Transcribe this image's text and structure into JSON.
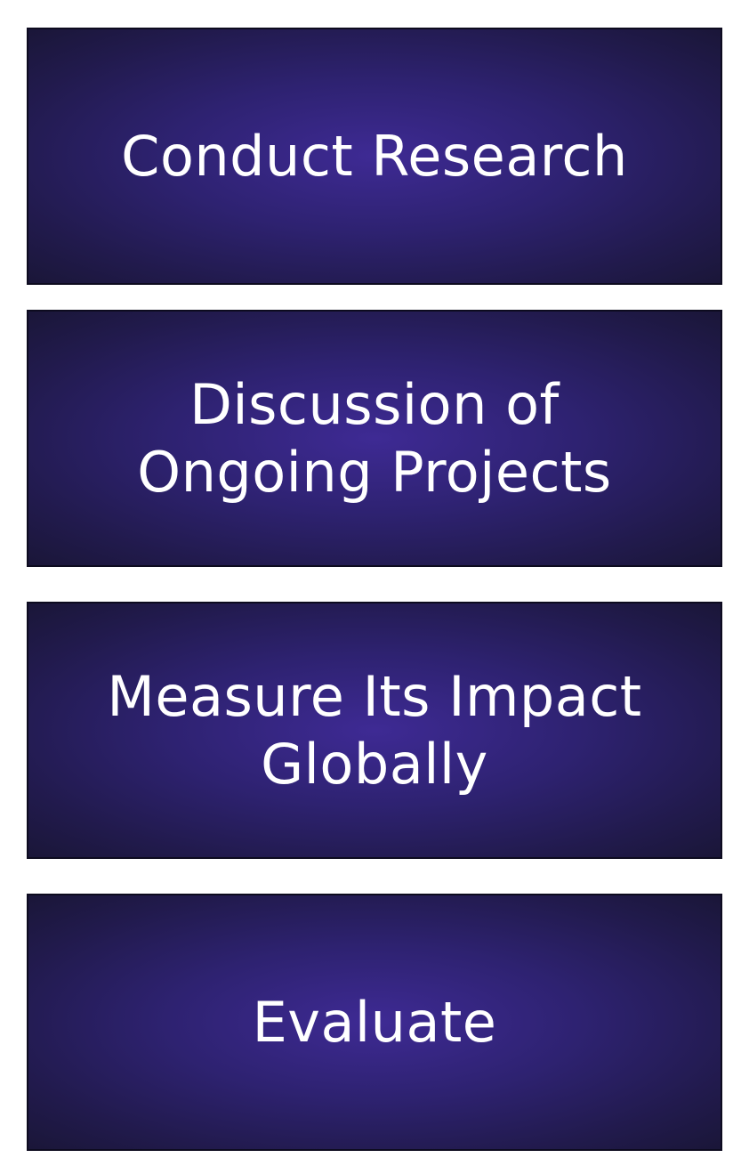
{
  "steps": [
    {
      "label": "Conduct Research"
    },
    {
      "label": "Discussion of\nOngoing Projects"
    },
    {
      "label": "Measure Its Impact\nGlobally"
    },
    {
      "label": "Evaluate"
    }
  ],
  "colors": {
    "box_center": "#3e2a94",
    "box_edge": "#1a1638",
    "border": "#0d0b1f",
    "text": "#ffffff",
    "background": "#ffffff"
  }
}
